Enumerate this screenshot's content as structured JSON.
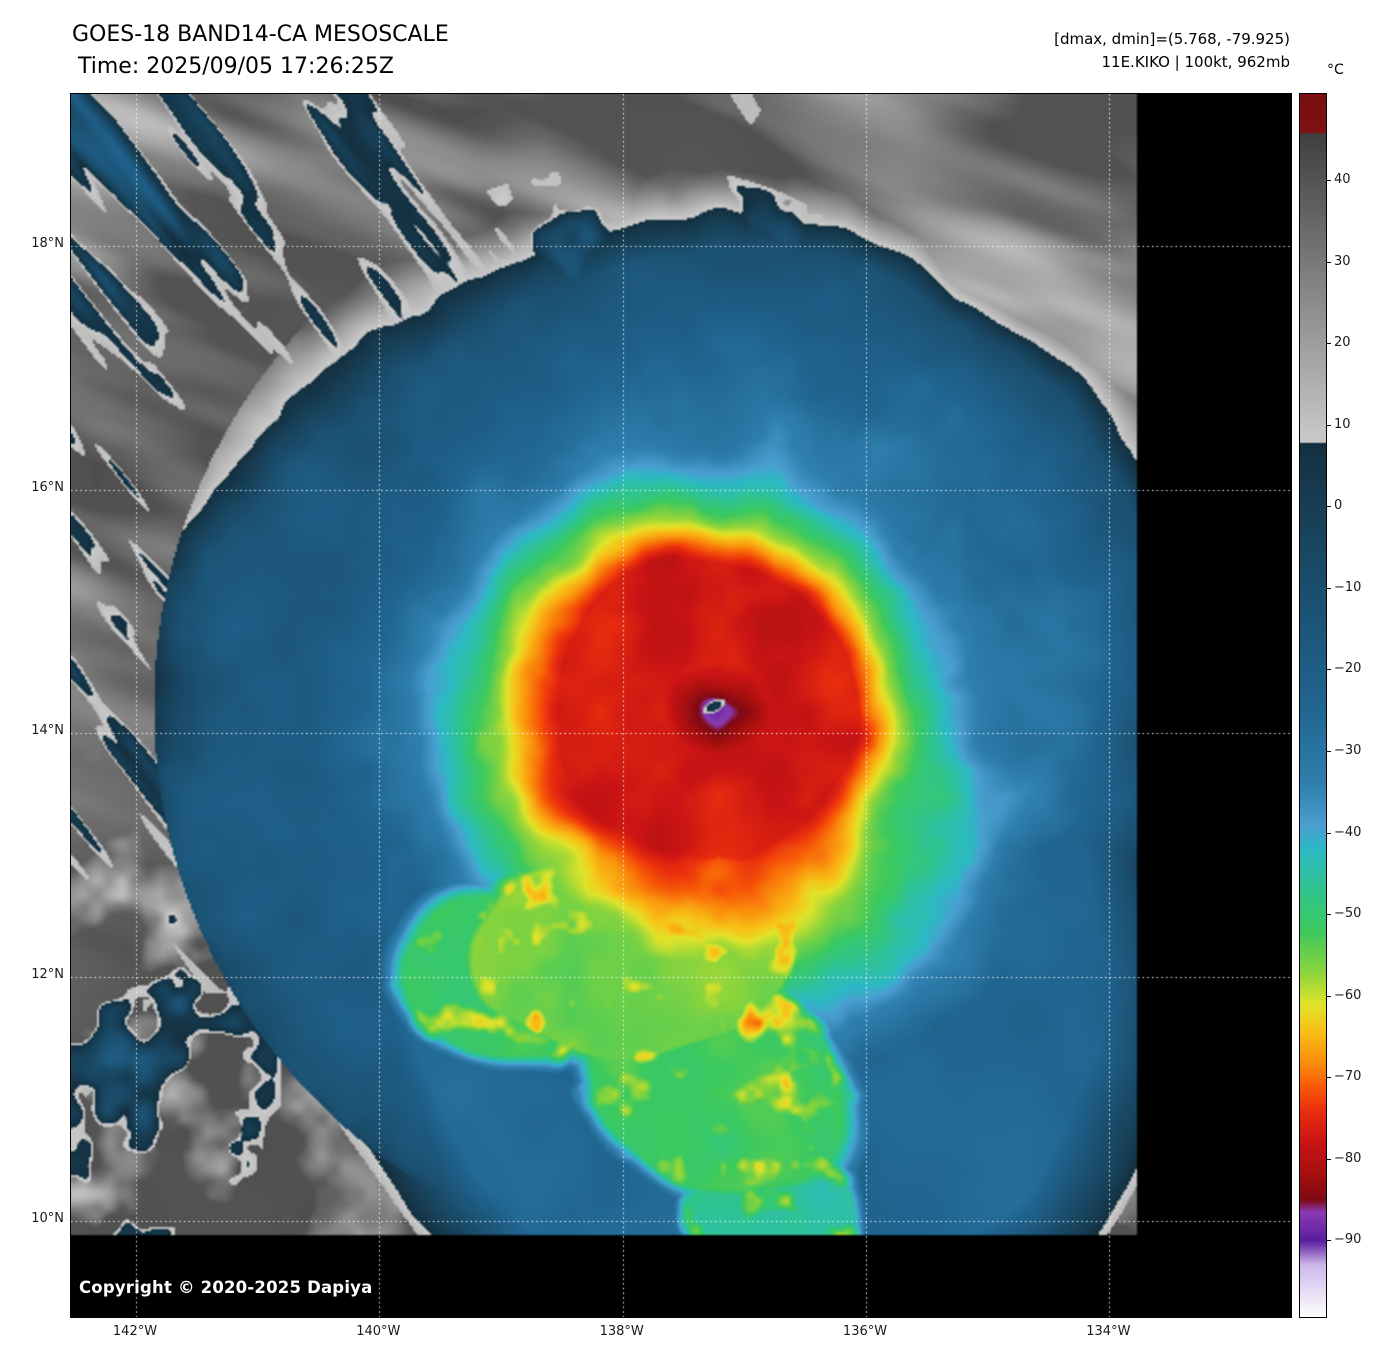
{
  "header": {
    "title": "GOES-18 BAND14-CA MESOSCALE",
    "time_line": "Time: 2025/09/05 17:26:25Z",
    "dmax_dmin": "[dmax, dmin]=(5.768, -79.925)",
    "storm_line": "11E.KIKO | 100kt, 962mb"
  },
  "colorbar": {
    "unit_label": "°C",
    "tick_labels": [
      "40",
      "30",
      "20",
      "10",
      "0",
      "−10",
      "−20",
      "−30",
      "−40",
      "−50",
      "−60",
      "−70",
      "−80",
      "−90"
    ],
    "tick_values": [
      40,
      30,
      20,
      10,
      0,
      -10,
      -20,
      -30,
      -40,
      -50,
      -60,
      -70,
      -80,
      -90
    ],
    "gradient_stops": [
      [
        50.7,
        "#7a0e10"
      ],
      [
        46.0,
        "#801012"
      ],
      [
        45.9,
        "#3f3f3f"
      ],
      [
        8.0,
        "#cacaca"
      ],
      [
        7.9,
        "#14303f"
      ],
      [
        0,
        "#173e55"
      ],
      [
        -12,
        "#1b5172"
      ],
      [
        -24,
        "#20648f"
      ],
      [
        -34,
        "#2f7fae"
      ],
      [
        -39,
        "#4a9fd0"
      ],
      [
        -42,
        "#2cb9c4"
      ],
      [
        -47,
        "#2fc48e"
      ],
      [
        -52,
        "#3cc95e"
      ],
      [
        -57,
        "#8bd43c"
      ],
      [
        -61,
        "#e0e32a"
      ],
      [
        -64,
        "#f7c318"
      ],
      [
        -68,
        "#fa8f0d"
      ],
      [
        -71,
        "#f75c07"
      ],
      [
        -74,
        "#ea2e0e"
      ],
      [
        -78,
        "#c91414"
      ],
      [
        -82,
        "#a30f0f"
      ],
      [
        -85,
        "#7e0a14"
      ],
      [
        -86.5,
        "#8a3bb4"
      ],
      [
        -90,
        "#5b1d9e"
      ],
      [
        -93,
        "#cdb9ea"
      ],
      [
        -99.3,
        "#ffffff"
      ]
    ]
  },
  "map": {
    "copyright": "Copyright © 2020-2025 Dapiya",
    "lat_tick_labels": [
      "18°N",
      "16°N",
      "14°N",
      "12°N",
      "10°N"
    ],
    "lat_tick_values": [
      18,
      16,
      14,
      12,
      10
    ],
    "lon_tick_labels": [
      "142°W",
      "140°W",
      "138°W",
      "136°W",
      "134°W"
    ],
    "lon_tick_values": [
      142,
      140,
      138,
      136,
      134
    ]
  }
}
